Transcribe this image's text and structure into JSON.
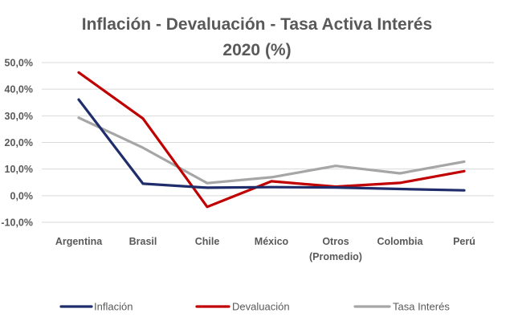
{
  "chart_data": {
    "type": "line",
    "title": [
      "Inflación - Devaluación - Tasa Activa Interés",
      "2020 (%)"
    ],
    "xlabel": "",
    "ylabel": "",
    "categories": [
      [
        "Argentina"
      ],
      [
        "Brasil"
      ],
      [
        "Chile"
      ],
      [
        "México"
      ],
      [
        "Otros",
        "(Promedio)"
      ],
      [
        "Colombia"
      ],
      [
        "Perú"
      ]
    ],
    "ylim": [
      -10,
      50
    ],
    "yticks": [
      -10,
      0,
      10,
      20,
      30,
      40,
      50
    ],
    "ytick_labels": [
      "-10,0%",
      "0,0%",
      "10,0%",
      "20,0%",
      "30,0%",
      "40,0%",
      "50,0%"
    ],
    "grid": true,
    "legend_position": "bottom",
    "series": [
      {
        "name": "Inflación",
        "color": "#1f2d6b",
        "values": [
          36.1,
          4.5,
          3.0,
          3.2,
          3.1,
          2.5,
          2.0
        ]
      },
      {
        "name": "Devaluación",
        "color": "#c00000",
        "values": [
          46.3,
          29.0,
          -4.2,
          5.4,
          3.4,
          4.8,
          9.2
        ]
      },
      {
        "name": "Tasa Interés",
        "color": "#a6a6a6",
        "values": [
          29.3,
          18.0,
          4.7,
          6.9,
          11.2,
          8.4,
          12.8
        ]
      }
    ]
  }
}
